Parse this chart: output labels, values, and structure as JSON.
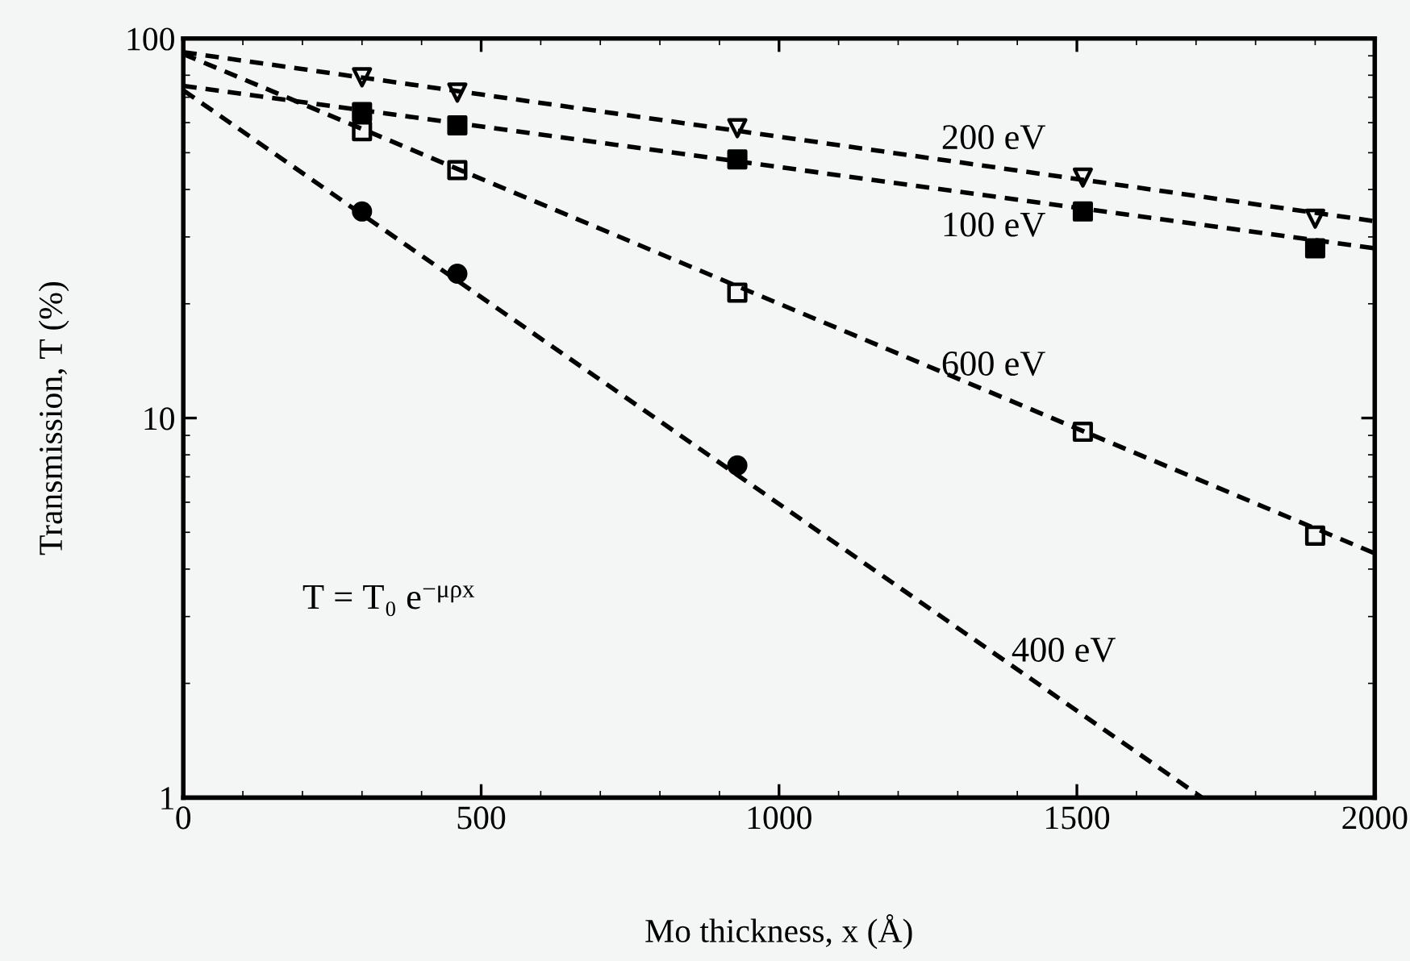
{
  "chart_data": {
    "type": "scatter",
    "xlabel": "Mo thickness, x (Å)",
    "ylabel": "Transmission, T (%)",
    "log": "y",
    "xlim": [
      0,
      2000
    ],
    "xticks": [
      0,
      500,
      1000,
      1500,
      2000
    ],
    "ylim": [
      1,
      100
    ],
    "yticks": [
      1,
      10,
      100
    ],
    "series": [
      {
        "color": "#000000",
        "marker": "triangle",
        "x": [
          300,
          460,
          930,
          1510,
          1900
        ],
        "values": [
          79,
          72,
          58,
          43,
          33.5
        ]
      },
      {
        "color": "#000000",
        "marker": "square",
        "x": [
          300,
          460,
          930,
          1510,
          1900
        ],
        "values": [
          64,
          59,
          48,
          35,
          28
        ]
      },
      {
        "color": "#000000",
        "marker": "square",
        "x": [
          300,
          460,
          930,
          1510,
          1900
        ],
        "values": [
          57,
          45,
          21.4,
          9.2,
          4.9
        ]
      },
      {
        "color": "#000000",
        "marker": "circle",
        "x": [
          300,
          460,
          930
        ],
        "values": [
          35,
          24,
          7.5
        ]
      },
      {
        "type": "line",
        "name": "200 eV",
        "color": "#000000",
        "marker": "none",
        "line_style": "dashed",
        "x": [
          0,
          2000
        ],
        "values": [
          92,
          33
        ]
      },
      {
        "type": "line",
        "name": "100 eV",
        "color": "#000000",
        "marker": "none",
        "line_style": "dashed",
        "x": [
          0,
          2000
        ],
        "values": [
          75,
          28
        ]
      },
      {
        "type": "line",
        "name": "600 eV",
        "color": "#000000",
        "marker": "none",
        "line_style": "dashed",
        "x": [
          0,
          2000
        ],
        "values": [
          91,
          4.4
        ]
      },
      {
        "type": "line",
        "name": "400 eV",
        "color": "#000000",
        "marker": "none",
        "line_style": "dashed",
        "x": [
          0,
          1710
        ],
        "values": [
          73,
          1
        ]
      }
    ],
    "annotations": [
      "T = T₀ e$^{−μρx}$"
    ]
  }
}
